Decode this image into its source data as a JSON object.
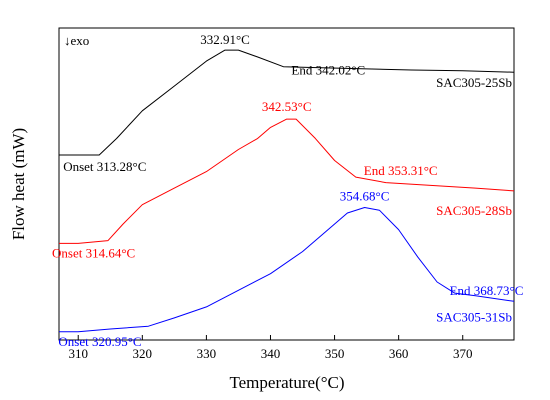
{
  "chart_data": {
    "type": "line",
    "xlabel": "Temperature(°C)",
    "ylabel": "Flow heat (mW)",
    "xlim": [
      307,
      378
    ],
    "x_ticks": [
      310,
      320,
      330,
      340,
      350,
      360,
      370
    ],
    "y_ticks_shown": false,
    "grid": false,
    "exo_label": "↓exo",
    "series": [
      {
        "name": "SAC305-25Sb",
        "color": "#000000",
        "x": [
          307,
          310,
          313.28,
          316,
          320,
          325,
          330,
          332.91,
          335,
          338,
          342.02,
          348,
          355,
          362,
          370,
          378
        ],
        "y": [
          0.22,
          0.22,
          0.22,
          0.28,
          0.38,
          0.47,
          0.56,
          0.6,
          0.6,
          0.575,
          0.54,
          0.536,
          0.532,
          0.528,
          0.525,
          0.52
        ],
        "annotations": [
          {
            "text": "332.91°C",
            "x": 332.91,
            "y": 0.6
          },
          {
            "text": "End 342.02°C",
            "x": 342.02,
            "y": 0.54
          },
          {
            "text": "Onset 313.28°C",
            "x": 313.28,
            "y": 0.22
          },
          {
            "text": "SAC305-25Sb",
            "x": 378,
            "y": 0.52
          }
        ]
      },
      {
        "name": "SAC305-28Sb",
        "color": "#ff0000",
        "x": [
          307,
          310,
          314.64,
          317,
          320,
          325,
          330,
          335,
          338,
          340,
          342.53,
          344,
          347,
          350,
          353.31,
          358,
          365,
          372,
          378
        ],
        "y": [
          -0.1,
          -0.1,
          -0.09,
          -0.03,
          0.04,
          0.1,
          0.16,
          0.24,
          0.28,
          0.32,
          0.35,
          0.35,
          0.28,
          0.2,
          0.14,
          0.12,
          0.11,
          0.1,
          0.09
        ],
        "annotations": [
          {
            "text": "342.53°C",
            "x": 342.53,
            "y": 0.35
          },
          {
            "text": "End 353.31°C",
            "x": 353.31,
            "y": 0.14
          },
          {
            "text": "Onset 314.64°C",
            "x": 314.64,
            "y": -0.09
          },
          {
            "text": "SAC305-28Sb",
            "x": 378,
            "y": 0.09
          }
        ]
      },
      {
        "name": "SAC305-31Sb",
        "color": "#0000ff",
        "x": [
          307,
          310,
          315,
          320.95,
          325,
          330,
          335,
          340,
          345,
          348,
          352,
          354.68,
          357,
          360,
          363,
          366,
          368.73,
          372,
          378
        ],
        "y": [
          -0.42,
          -0.42,
          -0.41,
          -0.4,
          -0.37,
          -0.33,
          -0.27,
          -0.21,
          -0.13,
          -0.07,
          0.01,
          0.03,
          0.02,
          -0.05,
          -0.15,
          -0.24,
          -0.28,
          -0.29,
          -0.31
        ],
        "annotations": [
          {
            "text": "354.68°C",
            "x": 354.68,
            "y": 0.03
          },
          {
            "text": "End 368.73°C",
            "x": 368.73,
            "y": -0.28
          },
          {
            "text": "Onset 320.95°C",
            "x": 320.95,
            "y": -0.4
          },
          {
            "text": "SAC305-31Sb",
            "x": 378,
            "y": -0.31
          }
        ]
      }
    ]
  }
}
